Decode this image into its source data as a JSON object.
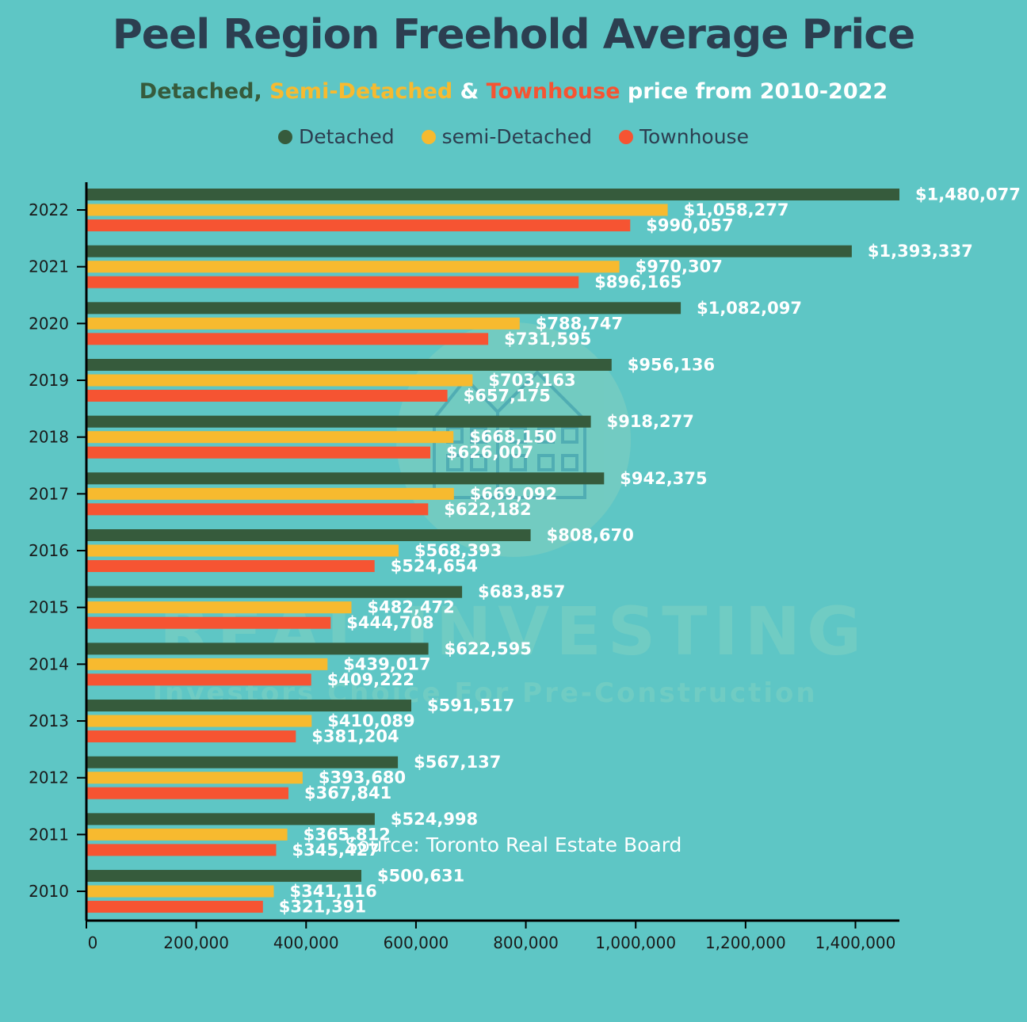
{
  "title": "Peel Region Freehold Average Price",
  "subtitle": {
    "part1": "Detached, ",
    "part2": "Semi-Detached",
    "part3": " & ",
    "part4": "Townhouse",
    "part5": " price from 2010-2022"
  },
  "legend": [
    "Detached",
    "semi-Detached",
    "Townhouse"
  ],
  "source": "Source: Toronto Real Estate Board",
  "watermark": {
    "main": "REAL INVESTING",
    "sub": "Investors Choice For Pre-Construction"
  },
  "colors": {
    "background": "#5EC6C5",
    "title": "#2C3E50",
    "detached": "#365B3C",
    "semi": "#F7BA2F",
    "townhouse": "#F65432"
  },
  "chart_data": {
    "type": "bar",
    "orientation": "horizontal",
    "categories": [
      "2022",
      "2021",
      "2020",
      "2019",
      "2018",
      "2017",
      "2016",
      "2015",
      "2014",
      "2013",
      "2012",
      "2011",
      "2010"
    ],
    "series": [
      {
        "name": "Detached",
        "values": [
          1480077,
          1393337,
          1082097,
          956136,
          918277,
          942375,
          808670,
          683857,
          622595,
          591517,
          567137,
          524998,
          500631
        ]
      },
      {
        "name": "semi-Detached",
        "values": [
          1058277,
          970307,
          788747,
          703163,
          668150,
          669092,
          568393,
          482472,
          439017,
          410089,
          393680,
          365812,
          341116
        ]
      },
      {
        "name": "Townhouse",
        "values": [
          990057,
          896165,
          731595,
          657175,
          626007,
          622182,
          524654,
          444708,
          409222,
          381204,
          367841,
          345427,
          321391
        ]
      }
    ],
    "data_labels": [
      [
        "$1,480,077",
        "$1,058,277",
        "$990,057"
      ],
      [
        "$1,393,337",
        "$970,307",
        "$896,165"
      ],
      [
        "$1,082,097",
        "$788,747",
        "$731,595"
      ],
      [
        "$956,136",
        "$703,163",
        "$657,175"
      ],
      [
        "$918,277",
        "$668,150",
        "$626,007"
      ],
      [
        "$942,375",
        "$669,092",
        "$622,182"
      ],
      [
        "$808,670",
        "$568,393",
        "$524,654"
      ],
      [
        "$683,857",
        "$482,472",
        "$444,708"
      ],
      [
        "$622,595",
        "$439,017",
        "$409,222"
      ],
      [
        "$591,517",
        "$410,089",
        "$381,204"
      ],
      [
        "$567,137",
        "$393,680",
        "$367,841"
      ],
      [
        "$524,998",
        "$365,812",
        "$345,427"
      ],
      [
        "$500,631",
        "$341,116",
        "$321,391"
      ]
    ],
    "x_ticks": [
      0,
      200000,
      400000,
      600000,
      800000,
      1000000,
      1200000,
      1400000
    ],
    "x_tick_labels": [
      "0",
      "200,000",
      "400,000",
      "600,000",
      "800,000",
      "1,000,000",
      "1,200,000",
      "1,400,000"
    ],
    "xlim": [
      0,
      1480077
    ],
    "xlabel": "",
    "ylabel": "",
    "grid": false,
    "legend_position": "top-center"
  }
}
